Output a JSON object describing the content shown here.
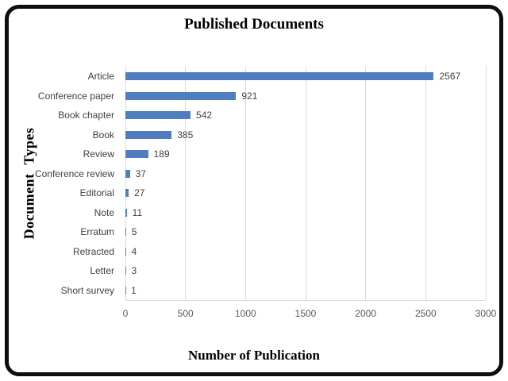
{
  "figure": {
    "border_color": "#0d0d0d",
    "background": "#ffffff"
  },
  "chart_data": {
    "type": "bar",
    "orientation": "horizontal",
    "title": "Published Documents",
    "xlabel": "Number of Publication",
    "ylabel": "Document Types",
    "categories": [
      "Article",
      "Conference paper",
      "Book chapter",
      "Book",
      "Review",
      "Conference review",
      "Editorial",
      "Note",
      "Erratum",
      "Retracted",
      "Letter",
      "Short survey"
    ],
    "values": [
      2567,
      921,
      542,
      385,
      189,
      37,
      27,
      11,
      5,
      4,
      3,
      1
    ],
    "xlim": [
      0,
      3000
    ],
    "xticks": [
      0,
      500,
      1000,
      1500,
      2000,
      2500,
      3000
    ],
    "grid": "vertical",
    "legend": "none",
    "colors": {
      "bar": "#4f7dbe",
      "gridline": "#d9d9d9",
      "category_label": "#3f3f3f",
      "value_label": "#404040",
      "tick_label": "#595959",
      "title": "#000000"
    }
  }
}
